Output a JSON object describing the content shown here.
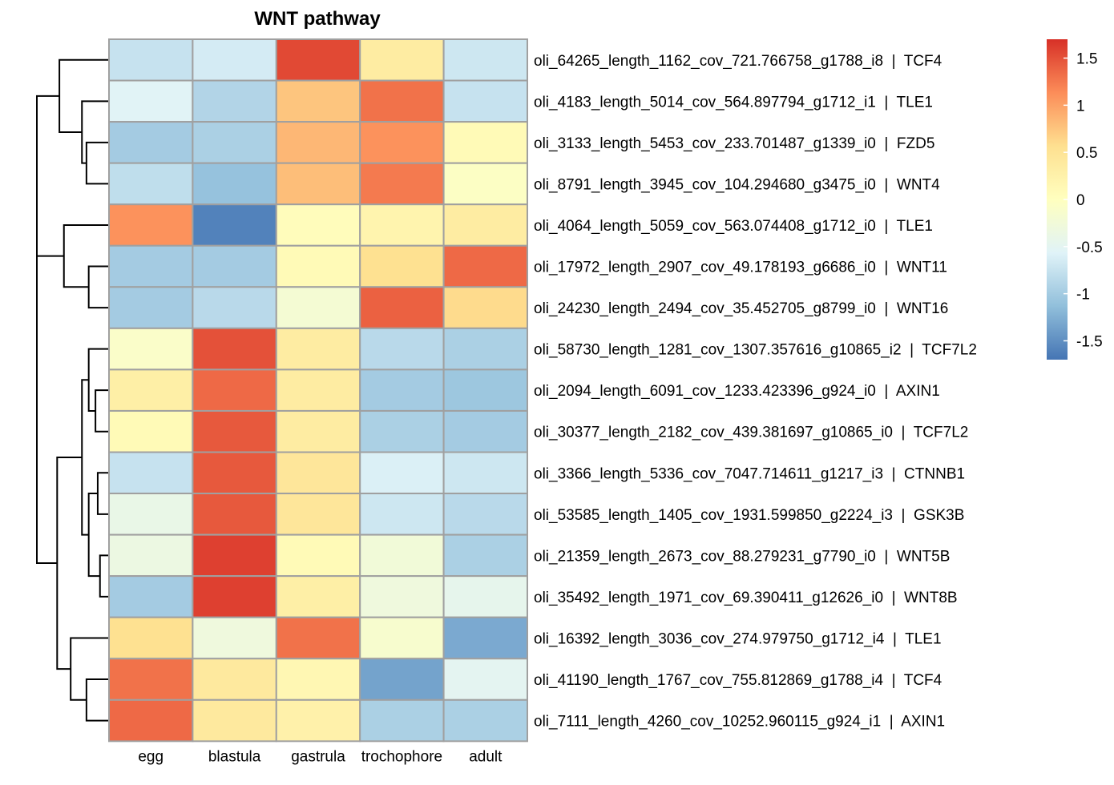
{
  "chart_data": {
    "type": "heatmap",
    "title": "WNT pathway",
    "columns": [
      "egg",
      "blastula",
      "gastrula",
      "trochophore",
      "adult"
    ],
    "rows": [
      "oli_64265_length_1162_cov_721.766758_g1788_i8  |  TCF4",
      "oli_4183_length_5014_cov_564.897794_g1712_i1  |  TLE1",
      "oli_3133_length_5453_cov_233.701487_g1339_i0  |  FZD5",
      "oli_8791_length_3945_cov_104.294680_g3475_i0  |  WNT4",
      "oli_4064_length_5059_cov_563.074408_g1712_i0  |  TLE1",
      "oli_17972_length_2907_cov_49.178193_g6686_i0  |  WNT11",
      "oli_24230_length_2494_cov_35.452705_g8799_i0  |  WNT16",
      "oli_58730_length_1281_cov_1307.357616_g10865_i2  |  TCF7L2",
      "oli_2094_length_6091_cov_1233.423396_g924_i0  |  AXIN1",
      "oli_30377_length_2182_cov_439.381697_g10865_i0  |  TCF7L2",
      "oli_3366_length_5336_cov_7047.714611_g1217_i3  |  CTNNB1",
      "oli_53585_length_1405_cov_1931.599850_g2224_i3  |  GSK3B",
      "oli_21359_length_2673_cov_88.279231_g7790_i0  |  WNT5B",
      "oli_35492_length_1971_cov_69.390411_g12626_i0  |  WNT8B",
      "oli_16392_length_3036_cov_274.979750_g1712_i4  |  TLE1",
      "oli_41190_length_1767_cov_755.812869_g1788_i4  |  TCF4",
      "oli_7111_length_4260_cov_10252.960115_g924_i1  |  AXIN1"
    ],
    "values": [
      [
        -0.75,
        -0.65,
        1.55,
        0.35,
        -0.7
      ],
      [
        -0.55,
        -0.9,
        0.75,
        1.3,
        -0.75
      ],
      [
        -1.0,
        -0.95,
        0.85,
        1.1,
        0.1
      ],
      [
        -0.8,
        -1.1,
        0.8,
        1.25,
        -0.05
      ],
      [
        1.1,
        -1.6,
        0.05,
        0.2,
        0.35
      ],
      [
        -1.0,
        -1.0,
        0.1,
        0.55,
        1.35
      ],
      [
        -1.0,
        -0.85,
        -0.2,
        1.4,
        0.6
      ],
      [
        -0.1,
        1.5,
        0.35,
        -0.85,
        -0.95
      ],
      [
        0.3,
        1.35,
        0.35,
        -1.0,
        -1.05
      ],
      [
        0.1,
        1.45,
        0.35,
        -0.95,
        -1.0
      ],
      [
        -0.75,
        1.45,
        0.45,
        -0.6,
        -0.7
      ],
      [
        -0.4,
        1.45,
        0.45,
        -0.7,
        -0.85
      ],
      [
        -0.35,
        1.6,
        0.1,
        -0.25,
        -0.95
      ],
      [
        -1.0,
        1.6,
        0.3,
        -0.3,
        -0.45
      ],
      [
        0.55,
        -0.3,
        1.3,
        -0.15,
        -1.3
      ],
      [
        1.3,
        0.4,
        0.15,
        -1.35,
        -0.5
      ],
      [
        1.35,
        0.4,
        0.25,
        -0.95,
        -0.95
      ]
    ],
    "legend_ticks": [
      "1.5",
      "1",
      "0.5",
      "0",
      "-0.5",
      "-1",
      "-1.5"
    ],
    "legend_tick_values": [
      1.5,
      1,
      0.5,
      0,
      -0.5,
      -1,
      -1.5
    ],
    "scale_range": [
      -1.7,
      1.7
    ],
    "color_scale": [
      "#4575b4",
      "#91bfdb",
      "#e0f3f8",
      "#ffffbf",
      "#fee090",
      "#fc8d59",
      "#d73027"
    ],
    "cell_border_color": "#a0a0a0",
    "row_dendrogram": {
      "leaf_order": [
        0,
        1,
        2,
        3,
        4,
        5,
        6,
        7,
        8,
        9,
        10,
        11,
        12,
        13,
        14,
        15,
        16
      ],
      "merges": [
        [
          2,
          3,
          0.5
        ],
        [
          1,
          17,
          0.6
        ],
        [
          0,
          18,
          1.1
        ],
        [
          5,
          6,
          0.45
        ],
        [
          4,
          20,
          1.0
        ],
        [
          19,
          21,
          1.6
        ],
        [
          8,
          9,
          0.3
        ],
        [
          7,
          23,
          0.45
        ],
        [
          10,
          11,
          0.25
        ],
        [
          12,
          13,
          0.2
        ],
        [
          25,
          26,
          0.45
        ],
        [
          24,
          27,
          0.6
        ],
        [
          15,
          16,
          0.5
        ],
        [
          14,
          29,
          0.85
        ],
        [
          28,
          30,
          1.15
        ],
        [
          22,
          31,
          1.6
        ]
      ]
    }
  }
}
